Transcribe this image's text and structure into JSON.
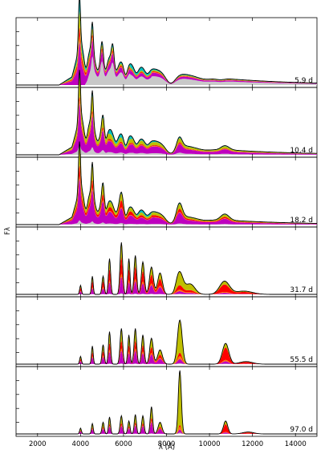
{
  "chart_data": {
    "type": "area",
    "xlabel": "λ (Å)",
    "ylabel": "Fλ",
    "xlim": [
      1000,
      15000
    ],
    "xticks": [
      2000,
      4000,
      6000,
      8000,
      10000,
      12000,
      14000
    ],
    "tick_labels": [
      "2000",
      "4000",
      "6000",
      "8000",
      "10000",
      "12000",
      "14000"
    ],
    "panel_labels": [
      "5.9 d",
      "10.4 d",
      "18.2 d",
      "31.7 d",
      "55.5 d",
      "97.0 d"
    ],
    "panels": [
      {
        "epoch_days": 5.9,
        "ylim": [
          0,
          1.0
        ]
      },
      {
        "epoch_days": 10.4,
        "ylim": [
          0,
          1.0
        ]
      },
      {
        "epoch_days": 18.2,
        "ylim": [
          0,
          1.0
        ]
      },
      {
        "epoch_days": 31.7,
        "ylim": [
          0,
          1.0
        ]
      },
      {
        "epoch_days": 55.5,
        "ylim": [
          0,
          1.0
        ]
      },
      {
        "epoch_days": 97.0,
        "ylim": [
          0,
          1.0
        ]
      }
    ],
    "component_colors": [
      "#c8c8c8",
      "#bf00bf",
      "#ff7f00",
      "#ff0000",
      "#bfbf00",
      "#00bfbf"
    ],
    "total_line_color": "#000000"
  }
}
